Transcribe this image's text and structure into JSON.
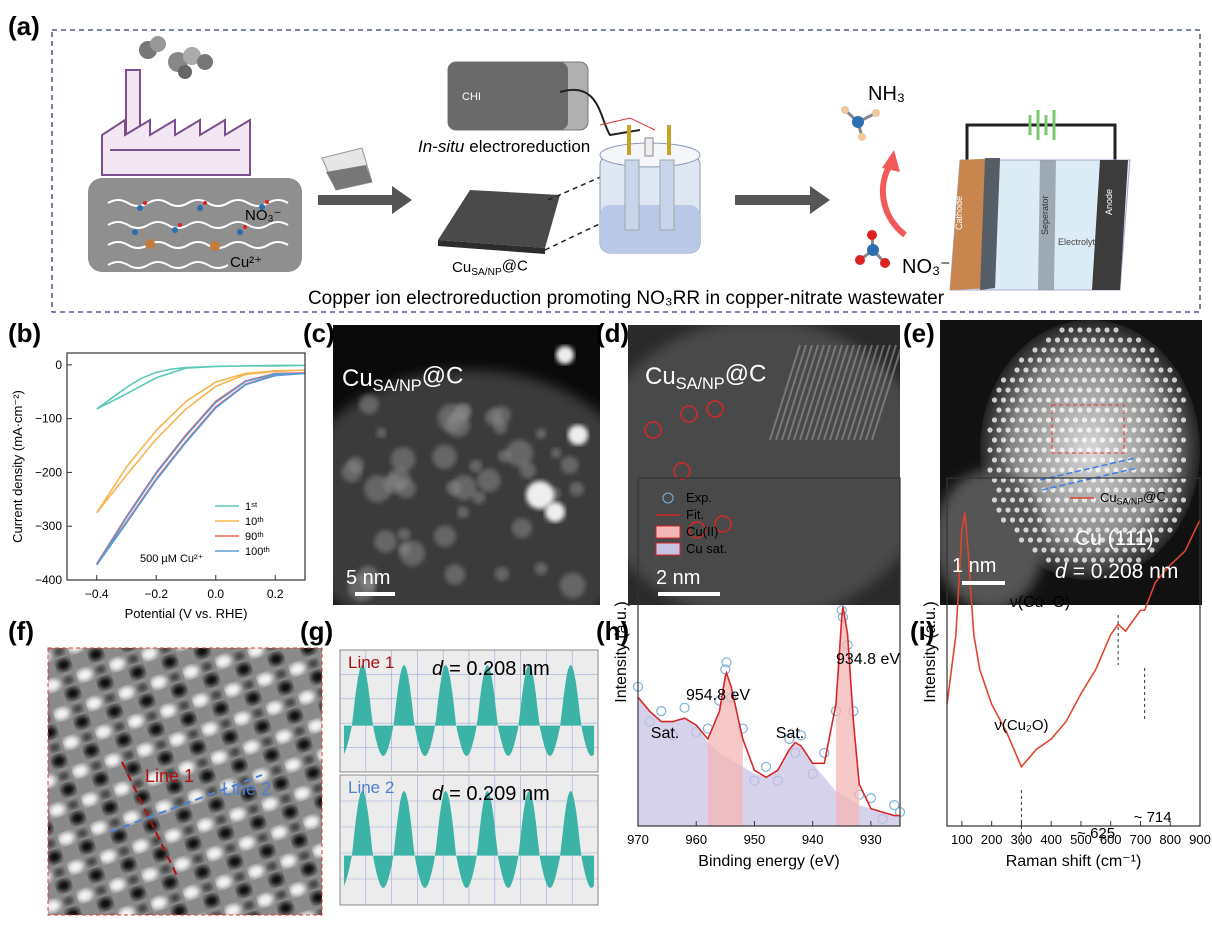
{
  "figure": {
    "panel_labels": [
      "(a)",
      "(b)",
      "(c)",
      "(d)",
      "(e)",
      "(f)",
      "(g)",
      "(h)",
      "(i)"
    ],
    "a": {
      "nitrate": "NO₃⁻",
      "copper_ion": "Cu²⁺",
      "instrument": "CHI",
      "method_italic": "In-situ",
      "method": "electroreduction",
      "catalyst": {
        "base": "Cu",
        "sub": "SA/NP",
        "tail": "@C"
      },
      "product": "NH₃",
      "reactant": "NO₃⁻",
      "cathode": "Cathode",
      "separator": "Seperator",
      "anode": "Anode",
      "electrolyte": "Electrolyte",
      "caption": "Copper ion electroreduction promoting NO₃RR in copper-nitrate wastewater"
    },
    "c": {
      "label": {
        "base": "Cu",
        "sub": "SA/NP",
        "tail": "@C"
      },
      "scale": "5 nm"
    },
    "d": {
      "label": {
        "base": "Cu",
        "sub": "SA/NP",
        "tail": "@C"
      },
      "scale": "2 nm"
    },
    "e": {
      "scale": "1 nm",
      "plane": "Cu (111)",
      "d_italic": "d",
      "d_value": "= 0.208 nm"
    },
    "f": {
      "line1": "Line 1",
      "line2": "Line 2"
    },
    "g": {
      "line1": "Line 1",
      "d1_italic": "d",
      "d1": "= 0.208 nm",
      "line2": "Line 2",
      "d2_italic": "d",
      "d2": "= 0.209 nm"
    }
  },
  "chart_data": [
    {
      "type": "line",
      "xlabel": "Potential (V vs. RHE)",
      "ylabel": "Current density (mA·cm⁻²)",
      "xlim": [
        -0.5,
        0.3
      ],
      "xticks": [
        {
          "value": -0.4,
          "label": "−0.4"
        },
        {
          "value": -0.2,
          "label": "−0.2"
        },
        {
          "value": 0,
          "label": "0.0"
        },
        {
          "value": 0.2,
          "label": "0.2"
        }
      ],
      "ylim": [
        -400,
        22
      ],
      "yticks": [
        0,
        {
          "value": -100,
          "label": "−100"
        },
        {
          "value": -200,
          "label": "−200"
        },
        {
          "value": -300,
          "label": "−300"
        },
        {
          "value": -400,
          "label": "−400"
        }
      ],
      "legend": "lower right",
      "annotations": [
        "500 µM Cu²⁺"
      ],
      "series": [
        {
          "name": "1st",
          "color": "#5cc9b8",
          "style": "line",
          "x": [
            -0.4,
            -0.35,
            -0.3,
            -0.25,
            -0.2,
            -0.15,
            -0.1,
            0,
            0.1,
            0.2,
            0.3,
            0.2,
            0.1,
            0,
            -0.1,
            -0.2,
            -0.3,
            -0.4
          ],
          "values": [
            -82,
            -62,
            -42,
            -25,
            -14,
            -8,
            -5,
            -3,
            -2,
            -2,
            -1,
            -1,
            -2,
            -3,
            -6,
            -24,
            -54,
            -82
          ]
        },
        {
          "name": "10th",
          "color": "#f5b552",
          "style": "line",
          "x": [
            -0.4,
            -0.3,
            -0.2,
            -0.1,
            0,
            0.1,
            0.2,
            0.3,
            0.2,
            0.1,
            0,
            -0.1,
            -0.2,
            -0.3,
            -0.4
          ],
          "values": [
            -275,
            -205,
            -138,
            -82,
            -40,
            -18,
            -12,
            -10,
            -11,
            -16,
            -32,
            -68,
            -122,
            -190,
            -275
          ]
        },
        {
          "name": "90th",
          "color": "#f0605a",
          "style": "line",
          "x": [
            -0.4,
            -0.3,
            -0.2,
            -0.1,
            0,
            0.1,
            0.2,
            0.3,
            0.2,
            0.1,
            0,
            -0.1,
            -0.2,
            -0.3,
            -0.4
          ],
          "values": [
            -370,
            -292,
            -212,
            -142,
            -78,
            -36,
            -19,
            -15,
            -16,
            -30,
            -68,
            -130,
            -200,
            -282,
            -370
          ]
        },
        {
          "name": "100th",
          "color": "#5b9bd5",
          "style": "line",
          "x": [
            -0.4,
            -0.3,
            -0.2,
            -0.1,
            0,
            0.1,
            0.2,
            0.3,
            0.2,
            0.1,
            0,
            -0.1,
            -0.2,
            -0.3,
            -0.4
          ],
          "values": [
            -372,
            -294,
            -214,
            -144,
            -80,
            -37,
            -20,
            -16,
            -17,
            -31,
            -70,
            -132,
            -202,
            -284,
            -372
          ]
        }
      ]
    },
    {
      "type": "line",
      "xlabel": "Binding energy (eV)",
      "ylabel": "Intensity (a.u.)",
      "xlim": [
        970,
        925
      ],
      "xticks": [
        970,
        960,
        950,
        940,
        930
      ],
      "ylim": [
        0,
        1
      ],
      "legend": "upper left",
      "annotations": [
        "Sat.",
        "954.8 eV",
        "Sat.",
        "934.8 eV"
      ],
      "series": [
        {
          "name": "Exp.",
          "color": "#7fb2d9",
          "style": "markers",
          "x": [
            970,
            968,
            966,
            964,
            962,
            960,
            958,
            956,
            955,
            954.8,
            954,
            952,
            950,
            948,
            946,
            944,
            943,
            942,
            940,
            938,
            936,
            935,
            934.8,
            934,
            933,
            932,
            930,
            928,
            926,
            925
          ],
          "values": [
            0.4,
            0.3,
            0.33,
            0.26,
            0.34,
            0.27,
            0.28,
            0.36,
            0.45,
            0.47,
            0.37,
            0.28,
            0.13,
            0.17,
            0.13,
            0.25,
            0.21,
            0.26,
            0.15,
            0.21,
            0.33,
            0.62,
            0.6,
            0.52,
            0.33,
            0.09,
            0.08,
            0.02,
            0.06,
            0.04
          ]
        },
        {
          "name": "Cu sat.",
          "color": "#c9c3e6",
          "style": "area",
          "x": [
            970,
            968,
            966,
            964,
            962,
            960,
            958,
            956,
            955,
            954.8,
            954,
            952,
            950,
            948,
            946,
            944,
            943,
            942,
            940,
            938,
            936,
            935,
            934.8,
            934,
            933,
            932,
            930,
            928,
            926,
            925
          ],
          "values": [
            0.37,
            0.33,
            0.3,
            0.3,
            0.31,
            0.29,
            0.24,
            0.21,
            0.2,
            0.2,
            0.19,
            0.17,
            0.15,
            0.14,
            0.16,
            0.22,
            0.24,
            0.23,
            0.18,
            0.14,
            0.1,
            0.09,
            0.09,
            0.08,
            0.07,
            0.06,
            0.05,
            0.04,
            0.03,
            0.03
          ]
        },
        {
          "name": "Cu(II)",
          "color": "#f4b6b6",
          "style": "area",
          "x": [
            970,
            968,
            966,
            964,
            962,
            960,
            958,
            956,
            955,
            954.8,
            954,
            952,
            950,
            948,
            946,
            944,
            943,
            942,
            940,
            938,
            936,
            935,
            934.8,
            934,
            933,
            932,
            930,
            928,
            926,
            925
          ],
          "values": [
            null,
            null,
            null,
            null,
            null,
            null,
            0.24,
            0.33,
            0.43,
            0.44,
            0.4,
            0.25,
            null,
            null,
            null,
            null,
            null,
            null,
            null,
            null,
            0.35,
            0.6,
            0.63,
            0.55,
            0.3,
            0.12,
            null,
            null,
            null,
            null
          ]
        },
        {
          "name": "Fit.",
          "color": "#d62728",
          "style": "line",
          "x": [
            970,
            968,
            966,
            964,
            962,
            960,
            958,
            956,
            955,
            954.8,
            954,
            952,
            950,
            948,
            946,
            944,
            943,
            942,
            940,
            938,
            936,
            935,
            934.8,
            934,
            933,
            932,
            930,
            928,
            926,
            925
          ],
          "values": [
            0.37,
            0.33,
            0.3,
            0.3,
            0.31,
            0.29,
            0.25,
            0.33,
            0.43,
            0.44,
            0.4,
            0.25,
            0.16,
            0.14,
            0.16,
            0.22,
            0.24,
            0.23,
            0.18,
            0.18,
            0.35,
            0.6,
            0.63,
            0.55,
            0.3,
            0.12,
            0.05,
            0.04,
            0.03,
            0.03
          ]
        }
      ]
    },
    {
      "type": "line",
      "xlabel": "Raman shift (cm⁻¹)",
      "ylabel": "Intensity (a.u.)",
      "xlim": [
        50,
        900
      ],
      "xticks": [
        100,
        200,
        300,
        400,
        500,
        600,
        700,
        800,
        900
      ],
      "ylim": [
        0,
        1
      ],
      "legend": "upper right",
      "annotations": [
        "ν(Cu–O)"
      ],
      "markers": [
        {
          "value": 300,
          "label": "ν(Cu₂O)"
        },
        {
          "value": 625,
          "label": "~ 625"
        },
        {
          "value": 714,
          "label": "~ 714"
        }
      ],
      "series": [
        {
          "name": {
            "base": "Cu",
            "sub": "SA/NP",
            "tail": "@C"
          },
          "color": "#e0452d",
          "style": "line",
          "x": [
            50,
            80,
            100,
            110,
            120,
            140,
            160,
            200,
            250,
            300,
            350,
            400,
            450,
            500,
            550,
            600,
            625,
            650,
            700,
            714,
            750,
            800,
            850,
            900
          ],
          "values": [
            0.35,
            0.55,
            0.85,
            0.9,
            0.8,
            0.55,
            0.45,
            0.35,
            0.27,
            0.17,
            0.22,
            0.25,
            0.3,
            0.38,
            0.45,
            0.55,
            0.58,
            0.56,
            0.62,
            0.62,
            0.7,
            0.75,
            0.79,
            0.88
          ]
        }
      ]
    }
  ]
}
